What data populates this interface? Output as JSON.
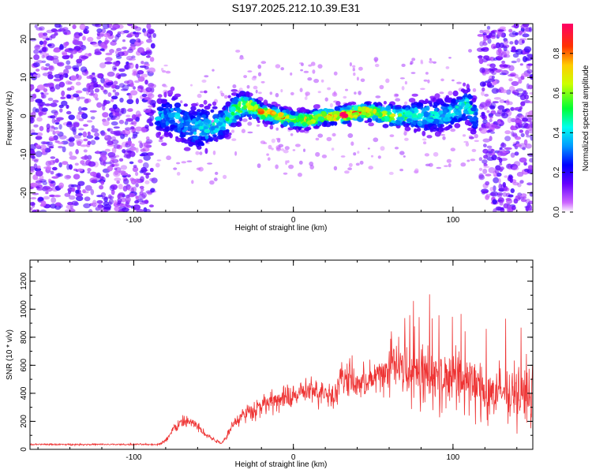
{
  "title": "S197.2025.212.10.39.E31",
  "chart_data": [
    {
      "type": "heatmap",
      "title": "S197.2025.212.10.39.E31",
      "xlabel": "Height of straight line (km)",
      "ylabel": "Frequency (Hz)",
      "xlim": [
        -165,
        150
      ],
      "ylim": [
        -25,
        24
      ],
      "xticks": [
        -100,
        0,
        100
      ],
      "yticks": [
        -20,
        -10,
        0,
        10,
        20
      ],
      "colorbar": {
        "label": "Normalized spectral amplitude",
        "range": [
          0,
          0.95
        ],
        "ticks": [
          0.0,
          0.2,
          0.4,
          0.6,
          0.8
        ],
        "tick_labels": [
          "0.0",
          "0.2",
          "0.4",
          "0.6",
          "0.8"
        ]
      },
      "noise_regions": [
        [
          -165,
          -87
        ],
        [
          117,
          150
        ]
      ],
      "ridge": {
        "x": [
          -85,
          -75,
          -65,
          -55,
          -45,
          -35,
          -30,
          -20,
          -10,
          0,
          10,
          20,
          30,
          40,
          50,
          60,
          70,
          80,
          90,
          100,
          110,
          112
        ],
        "y": [
          0,
          0,
          -3,
          -3,
          -2,
          2,
          3,
          1,
          0,
          -1,
          -1,
          0,
          0,
          1,
          1,
          0,
          0,
          0,
          0,
          1,
          3,
          0
        ],
        "width": [
          3,
          4,
          4,
          4,
          3,
          3,
          2,
          1.5,
          1.5,
          1.5,
          1.5,
          1.5,
          1.5,
          1.5,
          1.5,
          2,
          2,
          3,
          3,
          3,
          3,
          3
        ],
        "amplitude": [
          0.3,
          0.3,
          0.3,
          0.35,
          0.35,
          0.5,
          0.6,
          0.7,
          0.75,
          0.55,
          0.7,
          0.6,
          0.85,
          0.75,
          0.7,
          0.55,
          0.45,
          0.35,
          0.35,
          0.35,
          0.4,
          0.3
        ]
      },
      "grid": false
    },
    {
      "type": "line",
      "xlabel": "Height of straight line (km)",
      "ylabel": "SNR (10 * v/v)",
      "xlim": [
        -165,
        150
      ],
      "ylim": [
        0,
        1350
      ],
      "xticks": [
        -100,
        0,
        100
      ],
      "yticks": [
        0,
        200,
        400,
        600,
        800,
        1000,
        1200
      ],
      "color": "#ee3333",
      "envelope": {
        "x": [
          -165,
          -85,
          -80,
          -75,
          -68,
          -62,
          -55,
          -50,
          -45,
          -42,
          -38,
          -30,
          -25,
          -20,
          -15,
          -10,
          -5,
          0,
          5,
          10,
          15,
          20,
          25,
          30,
          35,
          40,
          45,
          50,
          55,
          60,
          62,
          65,
          70,
          75,
          80,
          85,
          90,
          95,
          100,
          105,
          110,
          115,
          120,
          125,
          130,
          135,
          140,
          145,
          150
        ],
        "mean": [
          35,
          35,
          60,
          150,
          200,
          180,
          110,
          70,
          45,
          90,
          180,
          260,
          280,
          320,
          330,
          350,
          360,
          380,
          400,
          420,
          400,
          420,
          380,
          500,
          520,
          450,
          480,
          500,
          540,
          560,
          620,
          600,
          590,
          560,
          560,
          540,
          520,
          500,
          520,
          500,
          480,
          450,
          420,
          400,
          390,
          380,
          360,
          380,
          400
        ],
        "spread": [
          10,
          10,
          30,
          70,
          80,
          70,
          50,
          30,
          15,
          40,
          80,
          110,
          120,
          130,
          130,
          140,
          150,
          150,
          160,
          170,
          160,
          170,
          160,
          220,
          230,
          200,
          220,
          230,
          250,
          280,
          380,
          380,
          380,
          380,
          380,
          380,
          380,
          380,
          380,
          380,
          380,
          380,
          360,
          350,
          340,
          330,
          320,
          330,
          350
        ]
      },
      "grid": false
    }
  ]
}
